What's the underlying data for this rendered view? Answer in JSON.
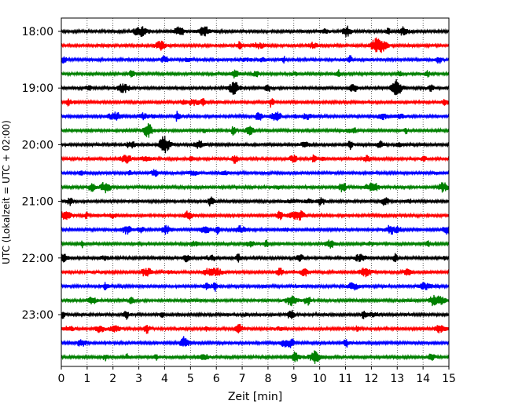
{
  "chart_data": {
    "type": "line",
    "title": "",
    "xlabel": "Zeit  [min]",
    "ylabel": "UTC (Lokalzeit = UTC + 02:00)",
    "xlim": [
      0,
      15
    ],
    "x_ticks": [
      "0",
      "1",
      "2",
      "3",
      "4",
      "5",
      "6",
      "7",
      "8",
      "9",
      "10",
      "11",
      "12",
      "13",
      "14",
      "15"
    ],
    "y_ticks": [
      "18:00",
      "19:00",
      "20:00",
      "21:00",
      "22:00",
      "23:00"
    ],
    "grid": "vertical dotted",
    "trace_interval_minutes": 15,
    "colors": [
      "#000000",
      "#ff0000",
      "#0000ff",
      "#008000"
    ],
    "series": [
      {
        "start": "18:00",
        "color": "#000000"
      },
      {
        "start": "18:15",
        "color": "#ff0000"
      },
      {
        "start": "18:30",
        "color": "#0000ff"
      },
      {
        "start": "18:45",
        "color": "#008000"
      },
      {
        "start": "19:00",
        "color": "#000000"
      },
      {
        "start": "19:15",
        "color": "#ff0000"
      },
      {
        "start": "19:30",
        "color": "#0000ff"
      },
      {
        "start": "19:45",
        "color": "#008000"
      },
      {
        "start": "20:00",
        "color": "#000000"
      },
      {
        "start": "20:15",
        "color": "#ff0000"
      },
      {
        "start": "20:30",
        "color": "#0000ff"
      },
      {
        "start": "20:45",
        "color": "#008000"
      },
      {
        "start": "21:00",
        "color": "#000000"
      },
      {
        "start": "21:15",
        "color": "#ff0000"
      },
      {
        "start": "21:30",
        "color": "#0000ff"
      },
      {
        "start": "21:45",
        "color": "#008000"
      },
      {
        "start": "22:00",
        "color": "#000000"
      },
      {
        "start": "22:15",
        "color": "#ff0000"
      },
      {
        "start": "22:30",
        "color": "#0000ff"
      },
      {
        "start": "22:45",
        "color": "#008000"
      },
      {
        "start": "23:00",
        "color": "#000000"
      },
      {
        "start": "23:15",
        "color": "#ff0000"
      },
      {
        "start": "23:30",
        "color": "#0000ff"
      },
      {
        "start": "23:45",
        "color": "#008000"
      }
    ]
  }
}
